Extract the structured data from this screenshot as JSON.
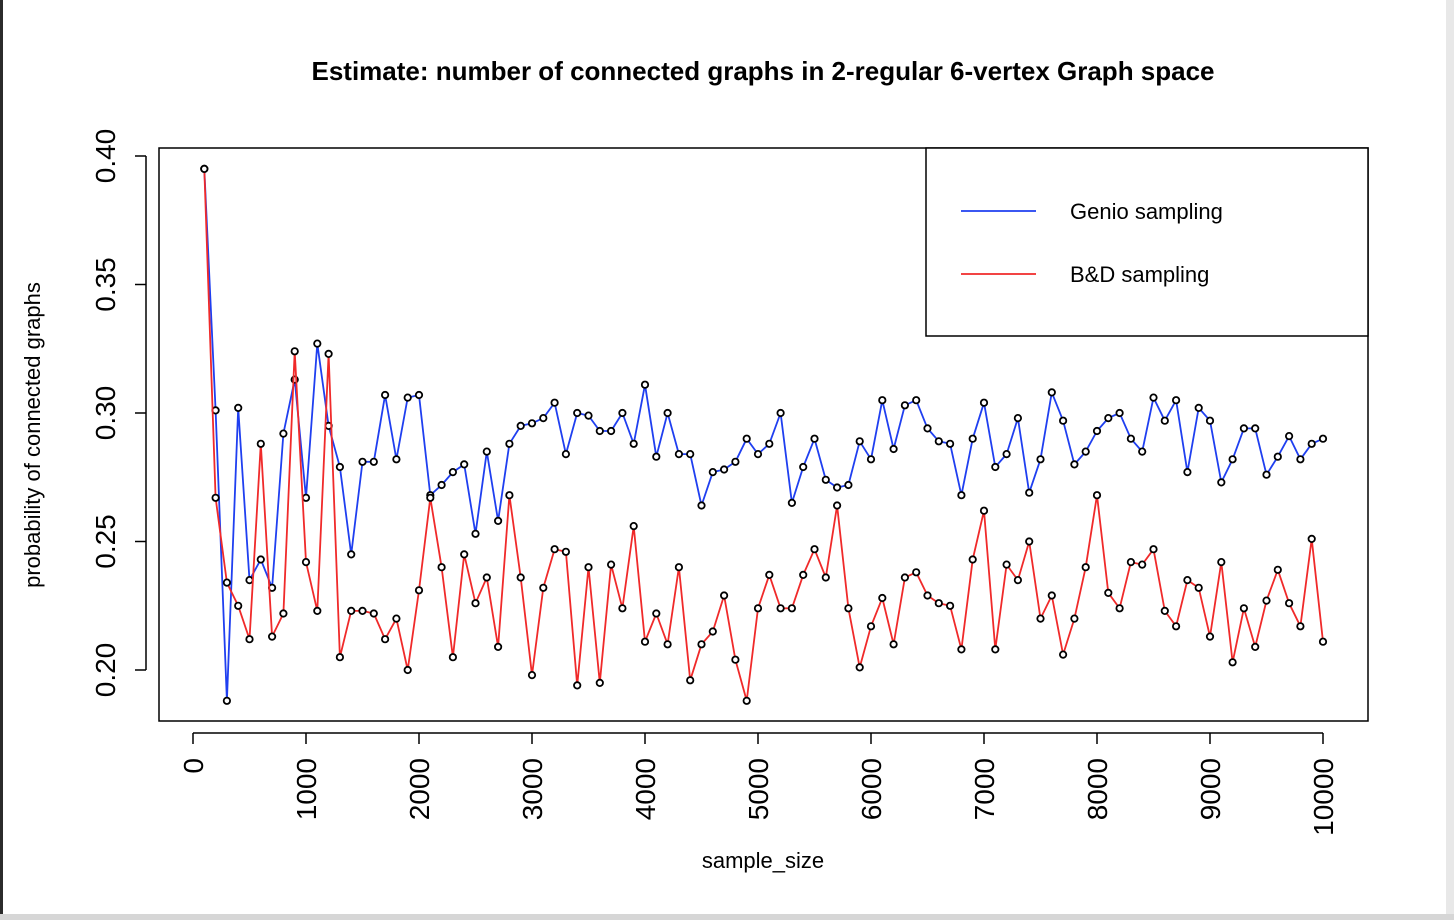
{
  "chart_data": {
    "type": "line",
    "title": "Estimate: number of connected graphs in 2-regular 6-vertex Graph space",
    "xlabel": "sample_size",
    "ylabel": "probability of connected graphs",
    "xlim": [
      0,
      10000
    ],
    "ylim": [
      0.2,
      0.4
    ],
    "xticks": [
      "0",
      "1000",
      "2000",
      "3000",
      "4000",
      "5000",
      "6000",
      "7000",
      "8000",
      "9000",
      "10000"
    ],
    "yticks": [
      "0.20",
      "0.25",
      "0.30",
      "0.35",
      "0.40"
    ],
    "grid": false,
    "legend_position": "top-right",
    "x": [
      100,
      200,
      300,
      400,
      500,
      600,
      700,
      800,
      900,
      1000,
      1100,
      1200,
      1300,
      1400,
      1500,
      1600,
      1700,
      1800,
      1900,
      2000,
      2100,
      2200,
      2300,
      2400,
      2500,
      2600,
      2700,
      2800,
      2900,
      3000,
      3100,
      3200,
      3300,
      3400,
      3500,
      3600,
      3700,
      3800,
      3900,
      4000,
      4100,
      4200,
      4300,
      4400,
      4500,
      4600,
      4700,
      4800,
      4900,
      5000,
      5100,
      5200,
      5300,
      5400,
      5500,
      5600,
      5700,
      5800,
      5900,
      6000,
      6100,
      6200,
      6300,
      6400,
      6500,
      6600,
      6700,
      6800,
      6900,
      7000,
      7100,
      7200,
      7300,
      7400,
      7500,
      7600,
      7700,
      7800,
      7900,
      8000,
      8100,
      8200,
      8300,
      8400,
      8500,
      8600,
      8700,
      8800,
      8900,
      9000,
      9100,
      9200,
      9300,
      9400,
      9500,
      9600,
      9700,
      9800,
      9900,
      10000
    ],
    "series": [
      {
        "name": "Genio sampling",
        "color": "#1f3ff0",
        "values": [
          0.395,
          0.301,
          0.188,
          0.302,
          0.235,
          0.243,
          0.232,
          0.292,
          0.313,
          0.267,
          0.327,
          0.295,
          0.279,
          0.245,
          0.281,
          0.281,
          0.307,
          0.282,
          0.306,
          0.307,
          0.268,
          0.272,
          0.277,
          0.28,
          0.253,
          0.285,
          0.258,
          0.288,
          0.295,
          0.296,
          0.298,
          0.304,
          0.284,
          0.3,
          0.299,
          0.293,
          0.293,
          0.3,
          0.288,
          0.311,
          0.283,
          0.3,
          0.284,
          0.284,
          0.264,
          0.277,
          0.278,
          0.281,
          0.29,
          0.284,
          0.288,
          0.3,
          0.265,
          0.279,
          0.29,
          0.274,
          0.271,
          0.272,
          0.289,
          0.282,
          0.305,
          0.286,
          0.303,
          0.305,
          0.294,
          0.289,
          0.288,
          0.268,
          0.29,
          0.304,
          0.279,
          0.284,
          0.298,
          0.269,
          0.282,
          0.308,
          0.297,
          0.28,
          0.285,
          0.293,
          0.298,
          0.3,
          0.29,
          0.285,
          0.306,
          0.297,
          0.305,
          0.277,
          0.302,
          0.297,
          0.273,
          0.282,
          0.294,
          0.294,
          0.276,
          0.283,
          0.291,
          0.282,
          0.288,
          0.29
        ]
      },
      {
        "name": "B&D sampling",
        "color": "#f02a2a",
        "values": [
          0.395,
          0.267,
          0.234,
          0.225,
          0.212,
          0.288,
          0.213,
          0.222,
          0.324,
          0.242,
          0.223,
          0.323,
          0.205,
          0.223,
          0.223,
          0.222,
          0.212,
          0.22,
          0.2,
          0.231,
          0.267,
          0.24,
          0.205,
          0.245,
          0.226,
          0.236,
          0.209,
          0.268,
          0.236,
          0.198,
          0.232,
          0.247,
          0.246,
          0.194,
          0.24,
          0.195,
          0.241,
          0.224,
          0.256,
          0.211,
          0.222,
          0.21,
          0.24,
          0.196,
          0.21,
          0.215,
          0.229,
          0.204,
          0.188,
          0.224,
          0.237,
          0.224,
          0.224,
          0.237,
          0.247,
          0.236,
          0.264,
          0.224,
          0.201,
          0.217,
          0.228,
          0.21,
          0.236,
          0.238,
          0.229,
          0.226,
          0.225,
          0.208,
          0.243,
          0.262,
          0.208,
          0.241,
          0.235,
          0.25,
          0.22,
          0.229,
          0.206,
          0.22,
          0.24,
          0.268,
          0.23,
          0.224,
          0.242,
          0.241,
          0.247,
          0.223,
          0.217,
          0.235,
          0.232,
          0.213,
          0.242,
          0.203,
          0.224,
          0.209,
          0.227,
          0.239,
          0.226,
          0.217,
          0.251,
          0.211
        ]
      }
    ]
  }
}
